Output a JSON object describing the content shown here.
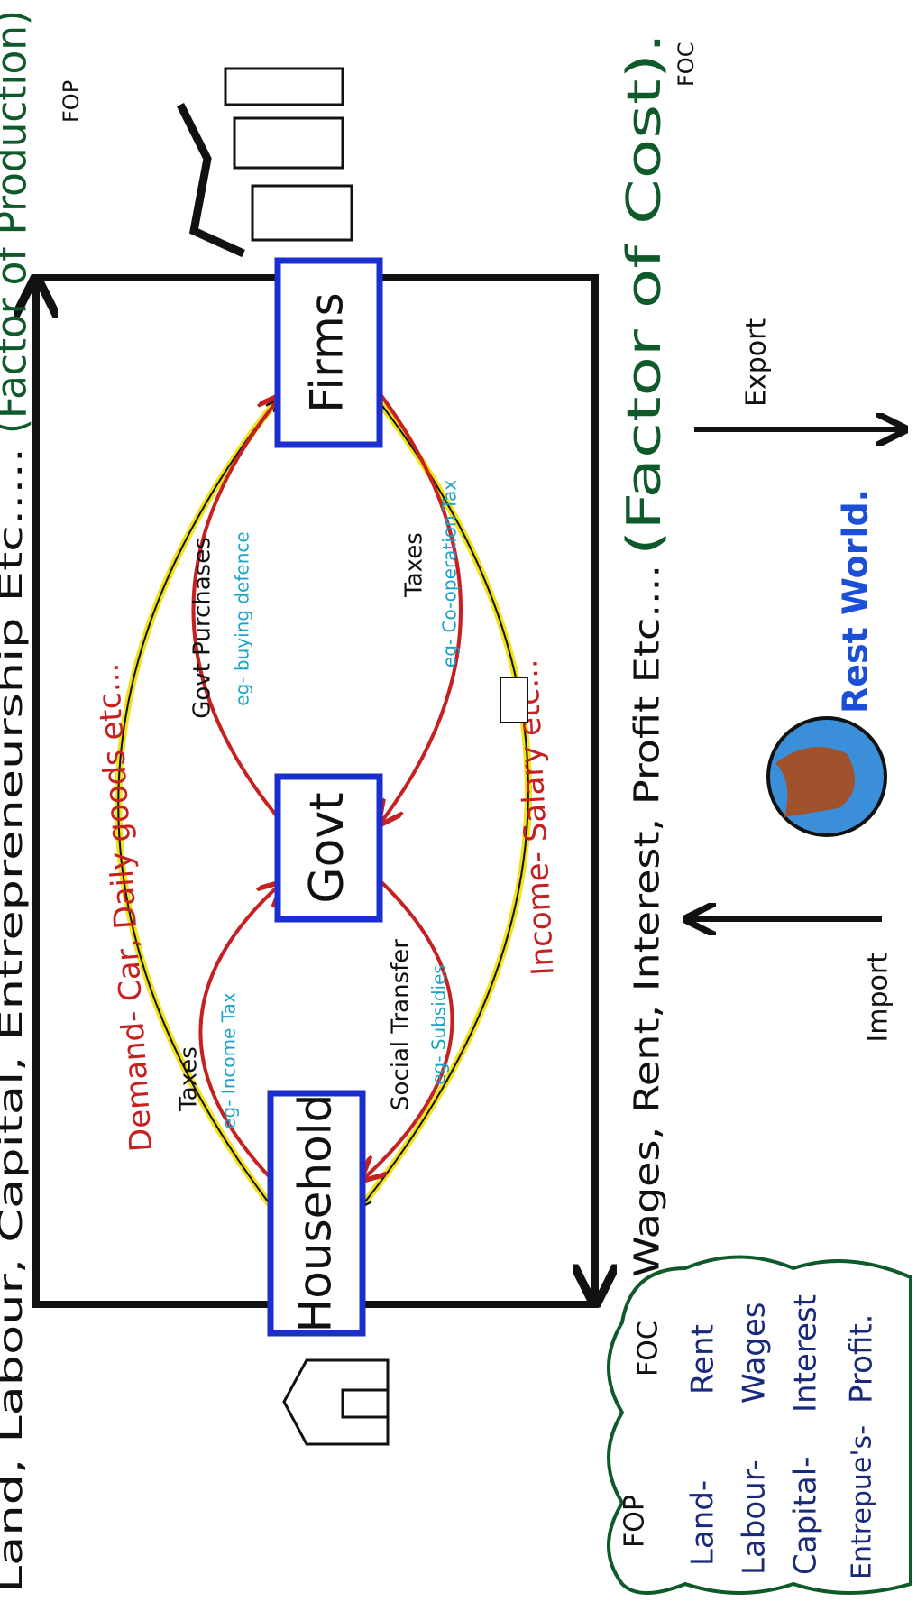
{
  "top_caption": "Land, Labour, Capital, Entrepreneurship Etc.....",
  "top_caption_note": "(Factor of Production)",
  "fop_abbr": "FOP",
  "bottom_caption": "Wages, Rent, Interest, Profit Etc....",
  "bottom_caption_note": "(Factor of Cost).",
  "foc_abbr": "FOC",
  "nodes": [
    {
      "label": "Household"
    },
    {
      "label": "Govt"
    },
    {
      "label": "Firms"
    }
  ],
  "flows": [
    {
      "label": "Demand- Car, Daily goods etc..."
    },
    {
      "label": "Income- Salary etc..."
    },
    {
      "label": "Taxes",
      "example": "eg- Income Tax"
    },
    {
      "label": "Social Transfer",
      "example": "eg- Subsidies"
    },
    {
      "label": "Govt Purchases",
      "example": "eg- buying defence"
    },
    {
      "label": "Taxes",
      "example": "eg- Co-operation Tax"
    }
  ],
  "world": {
    "label": "Rest World.",
    "import": "Import",
    "export": "Export"
  },
  "legend": {
    "headers": [
      "FOP",
      "FOC"
    ],
    "rows": [
      [
        "Land-",
        "Rent"
      ],
      [
        "Labour-",
        "Wages"
      ],
      [
        "Capital-",
        "Interest"
      ],
      [
        "Entrepue's-",
        "Profit."
      ]
    ]
  }
}
